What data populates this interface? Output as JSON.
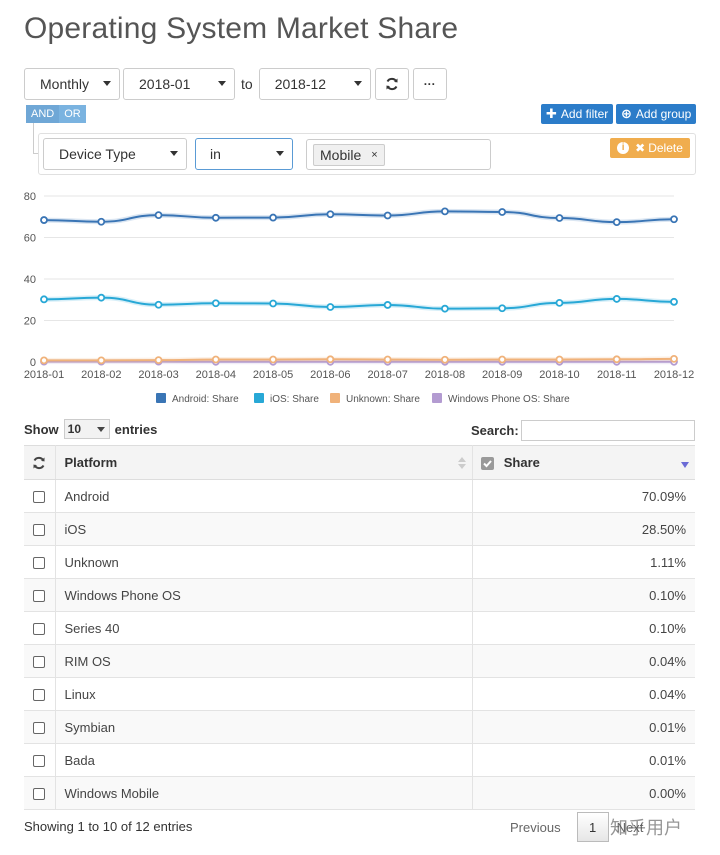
{
  "page": {
    "title": "Operating System Market Share"
  },
  "controls": {
    "period": "Monthly",
    "from": "2018-01",
    "to_label": "to",
    "to": "2018-12",
    "refresh_icon": "refresh-icon",
    "more_label": "···"
  },
  "query": {
    "and_label": "AND",
    "or_label": "OR",
    "add_filter": "Add filter",
    "add_group": "Add group",
    "field": "Device Type",
    "operator": "in",
    "value_tag": "Mobile",
    "value_remove": "×",
    "delete": "Delete"
  },
  "chart_data": {
    "type": "line",
    "x": [
      "2018-01",
      "2018-02",
      "2018-03",
      "2018-04",
      "2018-05",
      "2018-06",
      "2018-07",
      "2018-08",
      "2018-09",
      "2018-10",
      "2018-11",
      "2018-12"
    ],
    "ylim": [
      0,
      80
    ],
    "yticks": [
      0,
      20,
      40,
      60,
      80
    ],
    "grid": true,
    "legend_position": "bottom",
    "series": [
      {
        "name": "Android: Share",
        "color": "#3a75b5",
        "values": [
          68.4,
          67.6,
          70.8,
          69.5,
          69.6,
          71.2,
          70.6,
          72.6,
          72.3,
          69.4,
          67.4,
          68.8
        ]
      },
      {
        "name": "iOS: Share",
        "color": "#28a8d6",
        "values": [
          30.2,
          31.0,
          27.6,
          28.3,
          28.2,
          26.5,
          27.5,
          25.7,
          25.9,
          28.5,
          30.4,
          29.0
        ]
      },
      {
        "name": "Unknown: Share",
        "color": "#f0b27a",
        "values": [
          0.8,
          0.8,
          0.9,
          1.2,
          1.2,
          1.3,
          1.2,
          1.1,
          1.2,
          1.2,
          1.3,
          1.5
        ]
      },
      {
        "name": "Windows Phone OS: Share",
        "color": "#b39bd1",
        "values": [
          0.2,
          0.2,
          0.2,
          0.1,
          0.1,
          0.1,
          0.1,
          0.1,
          0.1,
          0.1,
          0.1,
          0.1
        ]
      }
    ]
  },
  "table": {
    "show_label": "Show",
    "page_size": "10",
    "entries_label": "entries",
    "search_label": "Search:",
    "header_platform": "Platform",
    "header_share": "Share",
    "rows": [
      {
        "platform": "Android",
        "share": "70.09%"
      },
      {
        "platform": "iOS",
        "share": "28.50%"
      },
      {
        "platform": "Unknown",
        "share": "1.11%"
      },
      {
        "platform": "Windows Phone OS",
        "share": "0.10%"
      },
      {
        "platform": "Series 40",
        "share": "0.10%"
      },
      {
        "platform": "RIM OS",
        "share": "0.04%"
      },
      {
        "platform": "Linux",
        "share": "0.04%"
      },
      {
        "platform": "Symbian",
        "share": "0.01%"
      },
      {
        "platform": "Bada",
        "share": "0.01%"
      },
      {
        "platform": "Windows Mobile",
        "share": "0.00%"
      }
    ],
    "info": "Showing 1 to 10 of 12 entries",
    "prev": "Previous",
    "page": "1",
    "next": "Next"
  },
  "watermark": "知乎用户"
}
